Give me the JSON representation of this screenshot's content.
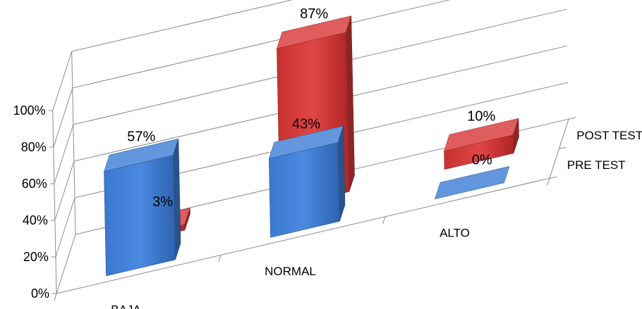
{
  "chart_data": {
    "type": "bar",
    "title": "",
    "xlabel": "",
    "ylabel": "",
    "ylim": [
      0,
      100
    ],
    "y_ticks": [
      "0%",
      "20%",
      "40%",
      "60%",
      "80%",
      "100%"
    ],
    "categories": [
      "BAJA",
      "NORMAL",
      "ALTO"
    ],
    "series": [
      {
        "name": "PRE TEST",
        "values": [
          57,
          43,
          0
        ],
        "labels": [
          "57%",
          "43%",
          "0%"
        ]
      },
      {
        "name": "POST TEST",
        "values": [
          3,
          87,
          10
        ],
        "labels": [
          "3%",
          "87%",
          "10%"
        ]
      }
    ],
    "colors": {
      "pre": "#3f7fd6",
      "post": "#d83a3a"
    },
    "grid": true,
    "legend": "depth-axis-right"
  }
}
